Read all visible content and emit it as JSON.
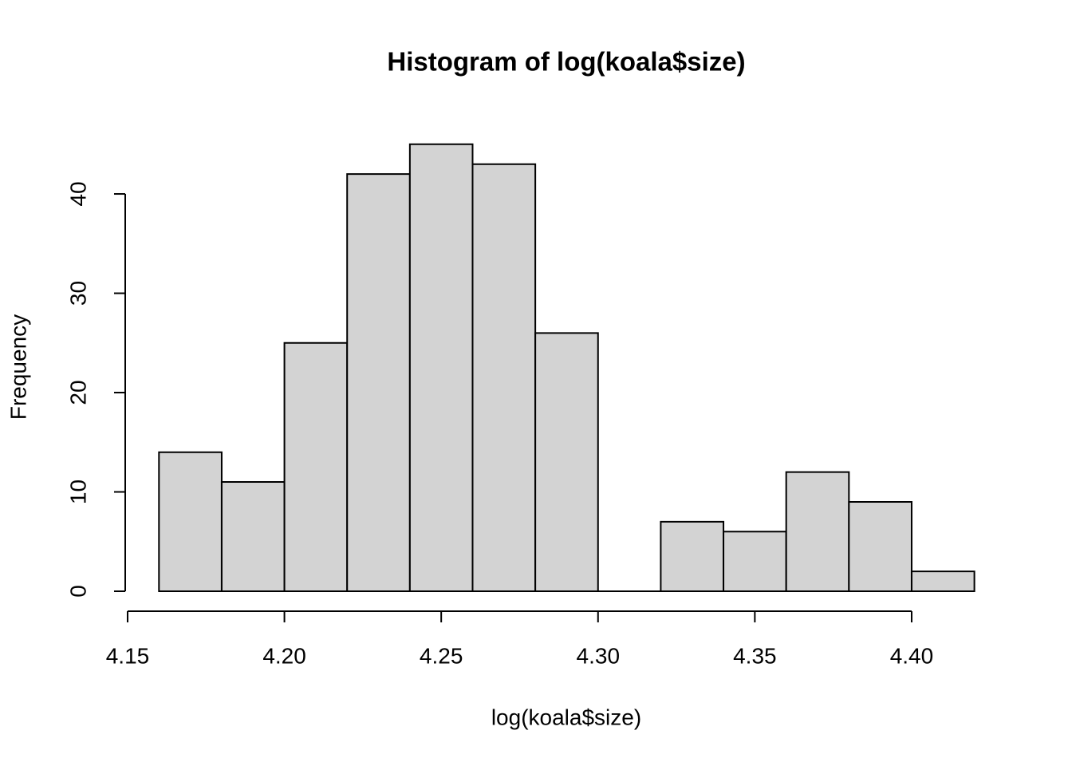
{
  "chart_data": {
    "type": "histogram",
    "title": "Histogram of log(koala$size)",
    "x_label": "log(koala$size)",
    "y_label": "Frequency",
    "bins": [
      4.16,
      4.18,
      4.2,
      4.22,
      4.24,
      4.26,
      4.28,
      4.3,
      4.32,
      4.34,
      4.36,
      4.38,
      4.4,
      4.42
    ],
    "values": [
      14,
      11,
      25,
      42,
      45,
      43,
      26,
      0,
      7,
      6,
      12,
      9,
      2
    ],
    "color": "#d3d3d3",
    "xlim": [
      4.16,
      4.42
    ],
    "xticks": [
      4.15,
      {
        "value": 4.2,
        "label": "4.20"
      },
      4.25,
      {
        "value": 4.3,
        "label": "4.30"
      },
      4.35,
      {
        "value": 4.4,
        "label": "4.40"
      }
    ],
    "ylim": [
      0,
      45
    ],
    "yticks": [
      0,
      10,
      20,
      30,
      40
    ]
  }
}
